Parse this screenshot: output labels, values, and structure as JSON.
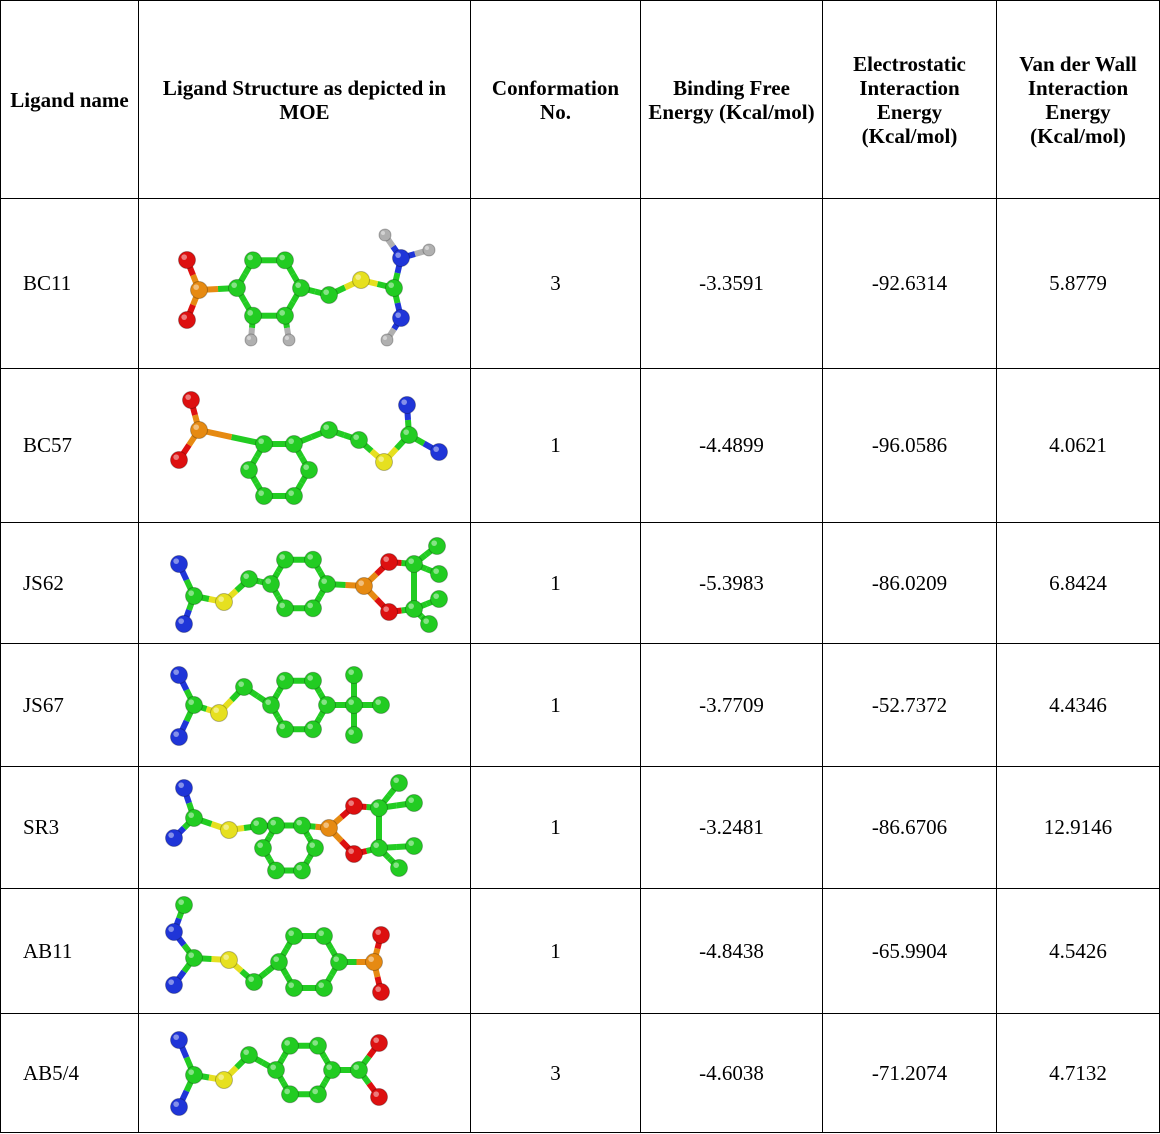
{
  "table": {
    "header": [
      "Ligand name",
      "Ligand Structure as depicted in MOE",
      "Conformation No.",
      "Binding Free Energy (Kcal/mol)",
      "Electrostatic Interaction Energy (Kcal/mol)",
      "Van der Wall Interaction Energy (Kcal/mol)"
    ],
    "rows": [
      [
        "BC11",
        "3",
        "-3.3591",
        "-92.6314",
        "5.8779"
      ],
      [
        "BC57",
        "1",
        "-4.4899",
        "-96.0586",
        "4.0621"
      ],
      [
        "JS62",
        "1",
        "-5.3983",
        "-86.0209",
        "6.8424"
      ],
      [
        "JS67",
        "1",
        "-3.7709",
        "-52.7372",
        "4.4346"
      ],
      [
        "SR3",
        "1",
        "-3.2481",
        "-86.6706",
        "12.9146"
      ],
      [
        "AB11",
        "1",
        "-4.8438",
        "-65.9904",
        "4.5426"
      ],
      [
        "AB5/4",
        "3",
        "-4.6038",
        "-71.2074",
        "4.7132"
      ]
    ]
  }
}
